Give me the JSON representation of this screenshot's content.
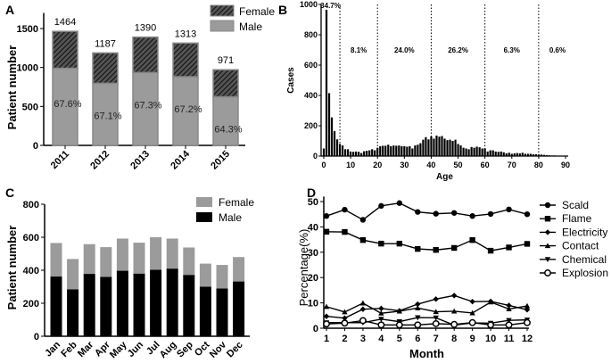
{
  "colors": {
    "male_a": "#9b9b9b",
    "female_c": "#9b9b9b",
    "male_c": "#000000",
    "ink": "#000000"
  },
  "chart_data": [
    {
      "panel": "A",
      "type": "bar",
      "stacked": true,
      "categories": [
        "2011",
        "2012",
        "2013",
        "2014",
        "2015"
      ],
      "series": [
        {
          "name": "Male",
          "values": [
            990,
            797,
            935,
            882,
            624
          ]
        },
        {
          "name": "Female",
          "values": [
            474,
            390,
            455,
            431,
            347
          ]
        }
      ],
      "totals": [
        "1464",
        "1187",
        "1390",
        "1313",
        "971"
      ],
      "male_pct_labels": [
        "67.6%",
        "67.1%",
        "67.3%",
        "67.2%",
        "64.3%"
      ],
      "xlabel": "",
      "ylabel": "Patient number",
      "ylim": [
        0,
        1700
      ],
      "yticks": [
        0,
        500,
        1000,
        1500
      ],
      "legend": [
        "Female",
        "Male"
      ],
      "legend_position": "top-right"
    },
    {
      "panel": "B",
      "type": "bar",
      "x": [
        0,
        1,
        2,
        3,
        4,
        5,
        6,
        7,
        8,
        9,
        10,
        11,
        12,
        13,
        14,
        15,
        16,
        17,
        18,
        19,
        20,
        21,
        22,
        23,
        24,
        25,
        26,
        27,
        28,
        29,
        30,
        31,
        32,
        33,
        34,
        35,
        36,
        37,
        38,
        39,
        40,
        41,
        42,
        43,
        44,
        45,
        46,
        47,
        48,
        49,
        50,
        51,
        52,
        53,
        54,
        55,
        56,
        57,
        58,
        59,
        60,
        61,
        62,
        63,
        64,
        65,
        66,
        67,
        68,
        69,
        70,
        71,
        72,
        73,
        74,
        75,
        76,
        77,
        78,
        79,
        80,
        81,
        82,
        83,
        84,
        85,
        86,
        87,
        88,
        89,
        90
      ],
      "values": [
        50,
        965,
        415,
        255,
        165,
        110,
        80,
        70,
        45,
        45,
        30,
        28,
        30,
        28,
        20,
        32,
        35,
        38,
        45,
        38,
        55,
        65,
        68,
        68,
        75,
        65,
        70,
        68,
        70,
        65,
        65,
        62,
        65,
        50,
        70,
        75,
        85,
        108,
        125,
        110,
        130,
        115,
        135,
        128,
        132,
        115,
        105,
        108,
        100,
        108,
        80,
        70,
        55,
        50,
        45,
        60,
        55,
        62,
        58,
        50,
        50,
        30,
        38,
        38,
        30,
        28,
        30,
        25,
        18,
        22,
        15,
        18,
        20,
        18,
        22,
        15,
        15,
        15,
        12,
        12,
        10,
        10,
        8,
        6,
        5,
        4,
        4,
        3,
        3,
        2,
        2
      ],
      "xlabel": "Age",
      "ylabel": "Cases",
      "xlim": [
        -1,
        91
      ],
      "ylim": [
        0,
        1000
      ],
      "xticks": [
        0,
        10,
        20,
        30,
        40,
        50,
        60,
        70,
        80,
        90
      ],
      "yticks": [
        0,
        200,
        400,
        600,
        800,
        1000
      ],
      "dividers": [
        6,
        20,
        40,
        60,
        80
      ],
      "segment_labels": [
        {
          "label": "34.7%",
          "x": 2.5
        },
        {
          "label": "8.1%",
          "x": 13
        },
        {
          "label": "24.0%",
          "x": 30
        },
        {
          "label": "26.2%",
          "x": 50
        },
        {
          "label": "6.3%",
          "x": 70
        },
        {
          "label": "0.6%",
          "x": 87
        }
      ]
    },
    {
      "panel": "C",
      "type": "bar",
      "stacked": true,
      "categories": [
        "Jan",
        "Feb",
        "Mar",
        "Apr",
        "May",
        "Jun",
        "Jul",
        "Aug",
        "Sep",
        "Oct",
        "Nov",
        "Dec"
      ],
      "series": [
        {
          "name": "Male",
          "values": [
            362,
            285,
            378,
            360,
            397,
            380,
            403,
            410,
            372,
            300,
            290,
            332
          ]
        },
        {
          "name": "Female",
          "values": [
            203,
            183,
            180,
            180,
            195,
            187,
            197,
            182,
            166,
            140,
            142,
            148
          ]
        }
      ],
      "xlabel": "",
      "ylabel": "Patient number",
      "ylim": [
        0,
        800
      ],
      "yticks": [
        0,
        200,
        400,
        600,
        800
      ],
      "legend": [
        "Female",
        "Male"
      ],
      "legend_position": "top-right"
    },
    {
      "panel": "D",
      "type": "line",
      "x": [
        1,
        2,
        3,
        4,
        5,
        6,
        7,
        8,
        9,
        10,
        11,
        12
      ],
      "series": [
        {
          "name": "Scald",
          "marker": "circle",
          "values": [
            44.3,
            46.8,
            42.8,
            48.3,
            49.4,
            45.9,
            45.2,
            45.5,
            44.3,
            45.1,
            46.9,
            45.0
          ]
        },
        {
          "name": "Flame",
          "marker": "square",
          "values": [
            38.1,
            38.0,
            34.8,
            33.4,
            33.4,
            31.3,
            30.9,
            31.7,
            34.8,
            30.6,
            31.9,
            33.3
          ]
        },
        {
          "name": "Electricity",
          "marker": "diamond",
          "values": [
            4.7,
            4.0,
            7.5,
            7.8,
            6.9,
            9.5,
            11.5,
            12.9,
            10.5,
            10.6,
            9.0,
            7.3
          ]
        },
        {
          "name": "Contact",
          "marker": "triangle-up",
          "values": [
            8.5,
            6.4,
            9.9,
            5.9,
            6.7,
            8.0,
            6.5,
            6.7,
            6.0,
            10.3,
            7.6,
            8.8
          ]
        },
        {
          "name": "Chemical",
          "marker": "triangle-down",
          "values": [
            2.2,
            2.2,
            2.2,
            3.6,
            2.6,
            4.2,
            4.1,
            1.2,
            2.1,
            2.0,
            3.1,
            3.3
          ]
        },
        {
          "name": "Explosion",
          "marker": "open-circle",
          "values": [
            1.7,
            2.0,
            3.0,
            1.3,
            1.3,
            1.3,
            1.8,
            1.5,
            2.2,
            1.3,
            1.3,
            2.2
          ]
        }
      ],
      "xlabel": "Month",
      "ylabel": "Percentage(%)",
      "xlim": [
        1,
        12
      ],
      "ylim": [
        0,
        52
      ],
      "yticks": [
        0,
        10,
        20,
        30,
        40,
        50
      ],
      "legend_position": "right"
    }
  ]
}
